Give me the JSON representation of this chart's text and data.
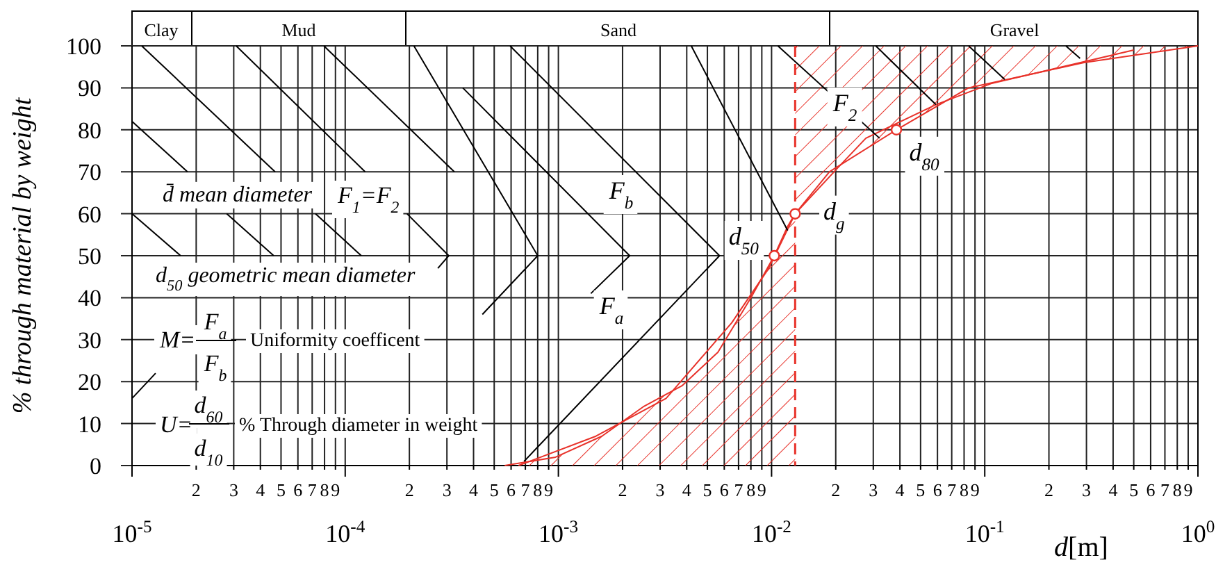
{
  "chart_data": {
    "type": "line",
    "xlabel": "d[m]",
    "ylabel": "% through material by weight",
    "log": "x",
    "xlim": [
      1e-05,
      1
    ],
    "ylim": [
      0,
      100
    ],
    "xticks": [
      {
        "value": 1e-05,
        "label": "10$^{-5}$"
      },
      {
        "value": 2e-05,
        "label": null
      },
      {
        "value": 3e-05,
        "label": null
      },
      {
        "value": 4e-05,
        "label": null
      },
      {
        "value": 5e-05,
        "label": null
      },
      {
        "value": 6e-05,
        "label": null
      },
      {
        "value": 7e-05,
        "label": null
      },
      {
        "value": 8e-05,
        "label": null
      },
      {
        "value": 9e-05,
        "label": null
      },
      {
        "value": 0.0001,
        "label": "10$^{-4}$"
      },
      {
        "value": 0.0002,
        "label": null
      },
      {
        "value": 0.0003,
        "label": null
      },
      {
        "value": 0.0004,
        "label": null
      },
      {
        "value": 0.0005,
        "label": null
      },
      {
        "value": 0.0006,
        "label": null
      },
      {
        "value": 0.0007,
        "label": null
      },
      {
        "value": 0.0008,
        "label": null
      },
      {
        "value": 0.0009,
        "label": null
      },
      {
        "value": 0.001,
        "label": "10$^{-3}$"
      },
      {
        "value": 0.002,
        "label": null
      },
      {
        "value": 0.003,
        "label": null
      },
      {
        "value": 0.004,
        "label": null
      },
      {
        "value": 0.005,
        "label": null
      },
      {
        "value": 0.006,
        "label": null
      },
      {
        "value": 0.007,
        "label": null
      },
      {
        "value": 0.008,
        "label": null
      },
      {
        "value": 0.009,
        "label": null
      },
      {
        "value": 0.01,
        "label": "10$^{-2}$"
      },
      {
        "value": 0.02,
        "label": null
      },
      {
        "value": 0.03,
        "label": null
      },
      {
        "value": 0.04,
        "label": null
      },
      {
        "value": 0.05,
        "label": null
      },
      {
        "value": 0.06,
        "label": null
      },
      {
        "value": 0.07,
        "label": null
      },
      {
        "value": 0.08,
        "label": null
      },
      {
        "value": 0.09,
        "label": null
      },
      {
        "value": 0.1,
        "label": "10$^{-1}$"
      },
      {
        "value": 0.2,
        "label": null
      },
      {
        "value": 0.3,
        "label": null
      },
      {
        "value": 0.4,
        "label": null
      },
      {
        "value": 0.5,
        "label": null
      },
      {
        "value": 0.6,
        "label": null
      },
      {
        "value": 0.7,
        "label": null
      },
      {
        "value": 0.8,
        "label": null
      },
      {
        "value": 0.9,
        "label": null
      },
      {
        "value": 1,
        "label": "10$^{0}$"
      }
    ],
    "yticks": [
      0,
      10,
      20,
      30,
      40,
      50,
      60,
      70,
      80,
      90,
      100
    ],
    "grid": true,
    "series": [
      {
        "color": "#e8322a",
        "x": [
          0.00056,
          0.00097,
          0.0016,
          0.0025,
          0.0038,
          0.0056,
          0.008,
          0.0103,
          0.0119,
          0.0129,
          0.0187,
          0.0385,
          0.084,
          0.29,
          1
        ],
        "values": [
          0,
          2,
          7,
          14,
          19,
          27,
          40,
          50,
          57,
          60,
          70,
          80,
          90,
          96,
          100
        ]
      },
      {
        "color": "#e8322a",
        "x": [
          0.00065,
          0.0015,
          0.0032,
          0.0065,
          0.0097,
          0.0129,
          0.0205,
          0.0277,
          0.059,
          0.107,
          0.5
        ],
        "values": [
          0,
          7,
          16,
          34,
          47,
          60,
          71,
          78,
          86,
          91,
          99
        ]
      },
      {
        "type": "scatter",
        "marker": "circle",
        "color": "#e8322a",
        "x": [
          0.0103,
          0.0129,
          0.0385
        ],
        "values": [
          50,
          60,
          80
        ]
      },
      {
        "color": "#000000",
        "x": [
          1e-05,
          1.82e-05
        ],
        "values": [
          82,
          70
        ]
      },
      {
        "color": "#000000",
        "x": [
          1.11e-05,
          4.69e-05
        ],
        "values": [
          100,
          70
        ]
      },
      {
        "color": "#000000",
        "x": [
          3.08e-05,
          0.000124
        ],
        "values": [
          100,
          70
        ]
      },
      {
        "color": "#000000",
        "x": [
          7.94e-05,
          0.000325
        ],
        "values": [
          100,
          70
        ]
      },
      {
        "color": "#000000",
        "x": [
          1e-05,
          1.69e-05
        ],
        "values": [
          60,
          50
        ]
      },
      {
        "color": "#000000",
        "x": [
          2.78e-05,
          4.62e-05
        ],
        "values": [
          60,
          50
        ]
      },
      {
        "color": "#000000",
        "x": [
          7.25e-05,
          0.000119
        ],
        "values": [
          60,
          50
        ]
      },
      {
        "color": "#000000",
        "x": [
          0.000195,
          0.000306,
          0.000272
        ],
        "values": [
          60,
          50,
          47
        ]
      },
      {
        "color": "#000000",
        "x": [
          0.00021,
          0.0008,
          0.00044
        ],
        "values": [
          100,
          50,
          36
        ]
      },
      {
        "color": "#000000",
        "x": [
          0.000593,
          0.0057,
          0.00069
        ],
        "values": [
          100,
          50,
          1
        ]
      },
      {
        "color": "#000000",
        "x": [
          0.000356,
          0.00216,
          0.00142
        ],
        "values": [
          90,
          50,
          41
        ]
      },
      {
        "color": "#000000",
        "x": [
          0.0042,
          0.0119
        ],
        "values": [
          100,
          56
        ]
      },
      {
        "color": "#000000",
        "x": [
          0.0107,
          0.0321
        ],
        "values": [
          100,
          78
        ]
      },
      {
        "color": "#000000",
        "x": [
          0.0308,
          0.059
        ],
        "values": [
          100,
          86
        ]
      },
      {
        "color": "#000000",
        "x": [
          0.084,
          0.124
        ],
        "values": [
          100,
          92
        ]
      },
      {
        "color": "#000000",
        "x": [
          0.24,
          0.28
        ],
        "values": [
          100,
          97
        ]
      },
      {
        "color": "#000000",
        "x": [
          1e-05,
          1.29e-05
        ],
        "values": [
          16,
          22
        ]
      }
    ],
    "ref_lines": [
      {
        "axis": "x",
        "value": 0.0129,
        "color": "#e8322a",
        "line_style": "dashed"
      }
    ],
    "annotations": [
      "d̄  mean diameter",
      "F$_{1}$=F$_{2}$",
      "d$_{50}$ geometric mean diameter",
      "M=",
      "F$_{a}$",
      "F$_{b}$",
      "Uniformity coefficent",
      "U=",
      "d$_{60}$",
      "d$_{10}$",
      "% Through diameter in weight",
      "F$_{b}$",
      "F$_{a}$",
      "F$_{2}$",
      "Clay",
      "Mud",
      "Sand",
      "Gravel",
      "2",
      "3",
      "4",
      "5",
      "6",
      "7",
      "8",
      "9",
      "2",
      "3",
      "4",
      "5",
      "6",
      "7",
      "8",
      "9",
      "2",
      "3",
      "4",
      "5",
      "6",
      "7",
      "8",
      "9",
      "2",
      "3",
      "4",
      "5",
      "6",
      "7",
      "8",
      "9",
      "2",
      "3",
      "4",
      "5",
      "6",
      "7",
      "8",
      "9",
      {
        "text": "d$_{50}$",
        "x": 0.0103,
        "y": 50
      },
      {
        "text": "d$_{g}$",
        "x": 0.0129,
        "y": 60
      },
      {
        "text": "d$_{80}$",
        "x": 0.0385,
        "y": 80
      }
    ]
  }
}
